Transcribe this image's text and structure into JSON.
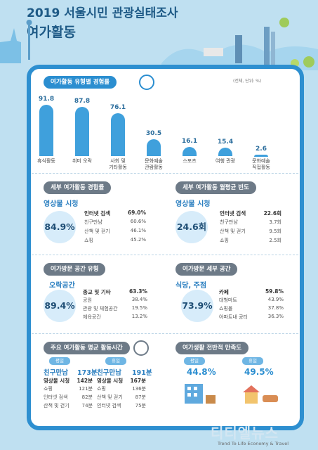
{
  "header": {
    "title_line1": "2019 서울시민 관광실태조사",
    "title_line2": "여가활동"
  },
  "section1": {
    "title": "여가활동 유형별 경험률",
    "unit_note": "(전체, 단위: %)"
  },
  "chart_data": {
    "type": "bar",
    "title": "여가활동 유형별 경험률",
    "categories": [
      "휴식활동",
      "취미 오락",
      "사회 및 기타활동",
      "문화예술 관람활동",
      "스포츠",
      "여행 관광",
      "문화예술 직접활동"
    ],
    "category_lines": [
      [
        "휴식활동"
      ],
      [
        "취미 오락"
      ],
      [
        "사회 및",
        "기타활동"
      ],
      [
        "문화예술",
        "관람활동"
      ],
      [
        "스포츠"
      ],
      [
        "여행 관광"
      ],
      [
        "문화예술",
        "직접활동"
      ]
    ],
    "values": [
      91.8,
      87.8,
      76.1,
      30.5,
      16.1,
      15.4,
      2.6
    ],
    "ylim": [
      0,
      100
    ]
  },
  "panel_exp": {
    "title": "세부 여가활동 경험률",
    "lead": "영상물 시청",
    "pct": "84.9%",
    "rows": [
      {
        "name": "인터넷 검색",
        "value": "69.0%"
      },
      {
        "name": "친구만남",
        "value": "60.6%"
      },
      {
        "name": "산책 및 걷기",
        "value": "46.1%"
      },
      {
        "name": "쇼핑",
        "value": "45.2%"
      }
    ]
  },
  "panel_freq": {
    "title": "세부 여가활동 월평균 빈도",
    "lead": "영상물 시청",
    "pct": "24.6회",
    "rows": [
      {
        "name": "인터넷 검색",
        "value": "22.6회"
      },
      {
        "name": "친구만남",
        "value": "3.7회"
      },
      {
        "name": "산책 및 걷기",
        "value": "9.5회"
      },
      {
        "name": "쇼핑",
        "value": "2.5회"
      }
    ]
  },
  "panel_space": {
    "title": "여가방문 공간 유형",
    "lead": "오락공간",
    "pct": "89.4%",
    "rows": [
      {
        "name": "종교 및 기타",
        "value": "63.3%"
      },
      {
        "name": "공원",
        "value": "38.4%"
      },
      {
        "name": "관광 및 체험공간",
        "value": "19.5%"
      },
      {
        "name": "체육공간",
        "value": "13.2%"
      }
    ]
  },
  "panel_detail": {
    "title": "여가방문 세부 공간",
    "lead": "식당, 주점",
    "pct": "73.9%",
    "rows": [
      {
        "name": "카페",
        "value": "59.8%"
      },
      {
        "name": "대형마트",
        "value": "43.9%"
      },
      {
        "name": "쇼핑몰",
        "value": "37.8%"
      },
      {
        "name": "아파트내 공터",
        "value": "36.3%"
      }
    ]
  },
  "panel_time": {
    "title": "주요 여가활동 평균 활동시간",
    "weekday": {
      "tag": "평일",
      "lead": "친구만남",
      "lead_val": "173분",
      "rows": [
        {
          "name": "영상물 시청",
          "value": "142분"
        },
        {
          "name": "쇼핑",
          "value": "121분"
        },
        {
          "name": "인터넷 검색",
          "value": "82분"
        },
        {
          "name": "산책 및 걷기",
          "value": "74분"
        }
      ]
    },
    "holiday": {
      "tag": "휴일",
      "lead": "친구만남",
      "lead_val": "191분",
      "rows": [
        {
          "name": "영상물 시청",
          "value": "167분"
        },
        {
          "name": "쇼핑",
          "value": "136분"
        },
        {
          "name": "산책 및 걷기",
          "value": "87분"
        },
        {
          "name": "인터넷 검색",
          "value": "75분"
        }
      ]
    }
  },
  "panel_sat": {
    "title": "여가생활 전반적 만족도",
    "weekday": {
      "tag": "평일",
      "value": "44.8%"
    },
    "holiday": {
      "tag": "휴일",
      "value": "49.5%"
    }
  },
  "brand": {
    "name": "티티엘뉴스",
    "tagline": "Trend To Life Economy & Travel"
  },
  "colors": {
    "primary": "#2b8ed0",
    "bar": "#3fa0dc",
    "background": "#bfe0f1",
    "accent_gray": "#6d7a87"
  }
}
